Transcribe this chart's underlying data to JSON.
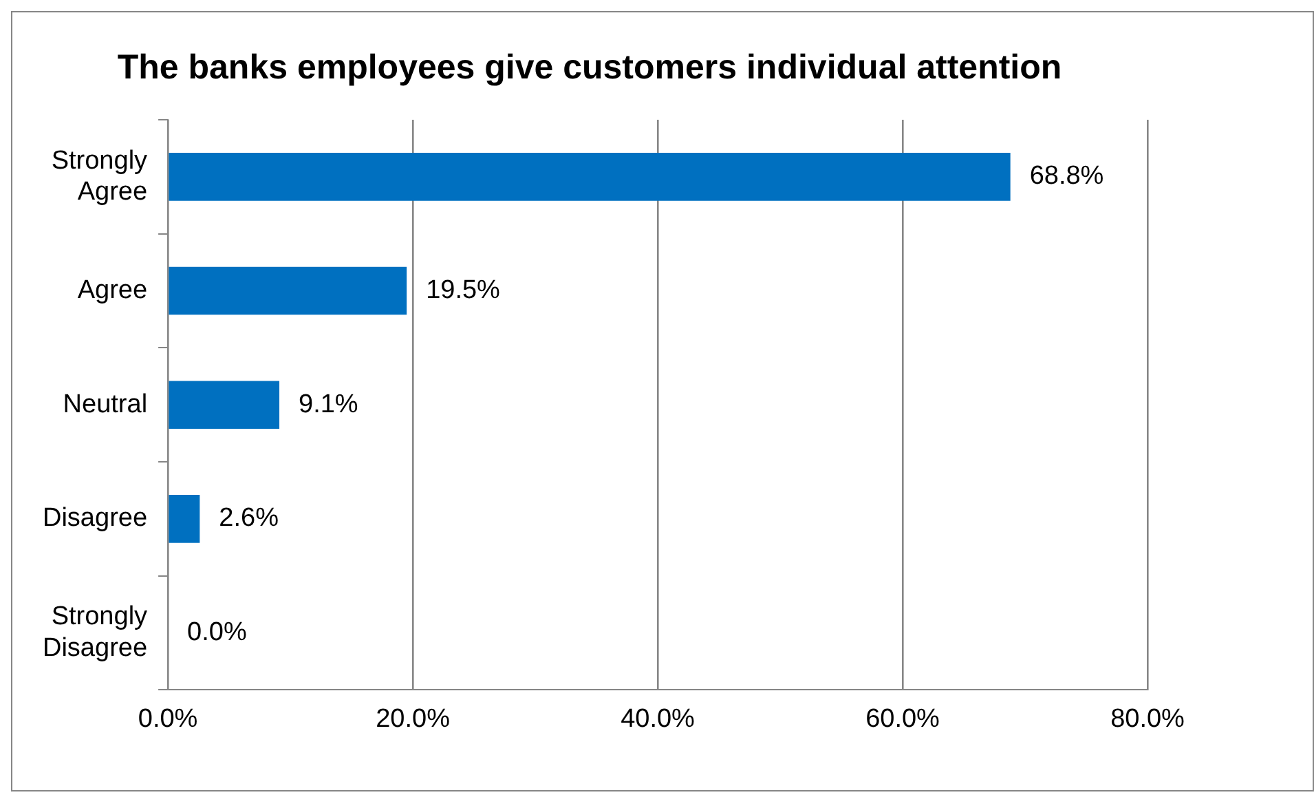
{
  "chart_data": {
    "type": "bar",
    "orientation": "horizontal",
    "title": "The banks employees give customers individual attention",
    "categories": [
      "Strongly Agree",
      "Agree",
      "Neutral",
      "Disagree",
      "Strongly Disagree"
    ],
    "values": [
      68.8,
      19.5,
      9.1,
      2.6,
      0.0
    ],
    "value_labels": [
      "68.8%",
      "19.5%",
      "9.1%",
      "2.6%",
      "0.0%"
    ],
    "color": "#0070c0",
    "xlim": [
      0,
      80
    ],
    "xticks": [
      {
        "value": 0,
        "label": "0.0%"
      },
      {
        "value": 20,
        "label": "20.0%"
      },
      {
        "value": 40,
        "label": "40.0%"
      },
      {
        "value": 60,
        "label": "60.0%"
      },
      {
        "value": 80,
        "label": "80.0%"
      }
    ],
    "grid": "x",
    "legend": false
  }
}
